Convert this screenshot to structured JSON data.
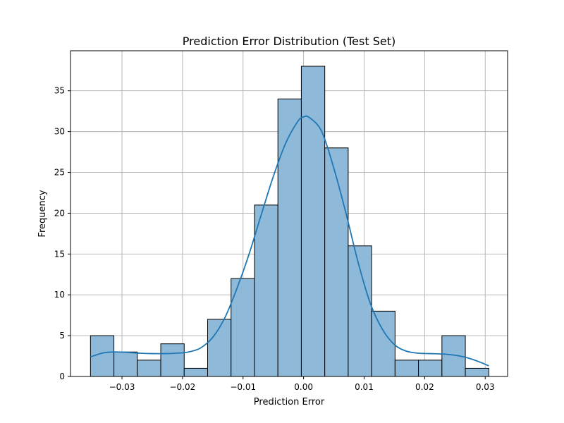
{
  "chart_data": {
    "type": "bar",
    "title": "Prediction Error Distribution (Test Set)",
    "xlabel": "Prediction Error",
    "ylabel": "Frequency",
    "xlim": [
      -0.0385,
      0.0337
    ],
    "ylim": [
      0,
      39.9
    ],
    "grid": true,
    "xticks": [
      -0.03,
      -0.02,
      -0.01,
      0.0,
      0.01,
      0.02,
      0.03
    ],
    "xtick_labels": [
      "−0.03",
      "−0.02",
      "−0.01",
      "0.00",
      "0.01",
      "0.02",
      "0.03"
    ],
    "yticks": [
      0,
      5,
      10,
      15,
      20,
      25,
      30,
      35
    ],
    "ytick_labels": [
      "0",
      "5",
      "10",
      "15",
      "20",
      "25",
      "30",
      "35"
    ],
    "bin_edges": [
      -0.0352,
      -0.03133,
      -0.02746,
      -0.02359,
      -0.01972,
      -0.01585,
      -0.01198,
      -0.00811,
      -0.00424,
      -0.00037,
      0.0035,
      0.00737,
      0.01124,
      0.01511,
      0.01898,
      0.02285,
      0.02672,
      0.0306
    ],
    "counts": [
      5,
      3,
      2,
      4,
      1,
      7,
      12,
      21,
      34,
      38,
      28,
      16,
      8,
      2,
      2,
      5,
      1
    ],
    "kde": {
      "x": [
        -0.0352,
        -0.033,
        -0.031,
        -0.029,
        -0.027,
        -0.025,
        -0.023,
        -0.021,
        -0.019,
        -0.017,
        -0.015,
        -0.013,
        -0.011,
        -0.009,
        -0.007,
        -0.005,
        -0.003,
        -0.001,
        0.0,
        0.001,
        0.003,
        0.005,
        0.007,
        0.009,
        0.011,
        0.013,
        0.015,
        0.017,
        0.019,
        0.021,
        0.023,
        0.025,
        0.027,
        0.029,
        0.0306
      ],
      "y": [
        2.4,
        2.9,
        3.0,
        2.95,
        2.85,
        2.8,
        2.8,
        2.85,
        3.0,
        3.5,
        4.8,
        7.2,
        10.8,
        15.0,
        19.8,
        24.5,
        28.5,
        31.2,
        31.8,
        31.7,
        30.0,
        25.5,
        20.0,
        14.0,
        9.0,
        5.8,
        3.9,
        3.1,
        2.85,
        2.8,
        2.75,
        2.6,
        2.3,
        1.8,
        1.3
      ]
    },
    "colors": {
      "bar_fill": "#8fb9d9",
      "bar_edge": "#000000",
      "kde_line": "#1f77b4",
      "grid": "#b0b0b0"
    }
  }
}
